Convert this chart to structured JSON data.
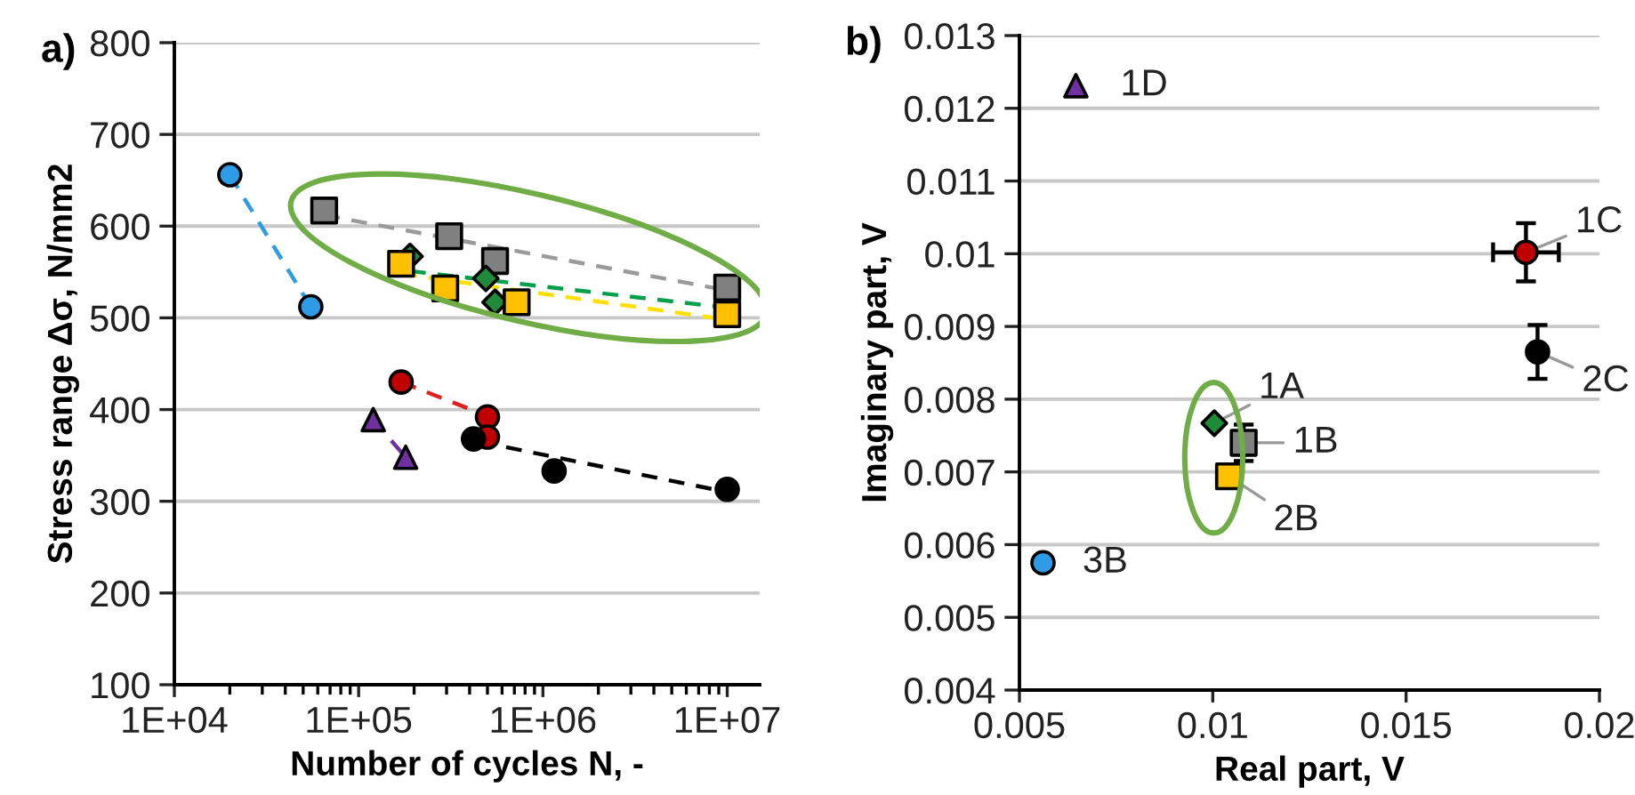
{
  "chart_data": [
    {
      "type": "scatter",
      "xlabel": "Number of cycles N, -",
      "ylabel": "Stress range Δσ, N/mm2",
      "annotations": [
        "a)"
      ],
      "log": "x",
      "grid": "y",
      "xlim": [
        10000,
        15000000
      ],
      "xticks": [
        {
          "value": 10000,
          "label": "1E+04"
        },
        {
          "value": 100000,
          "label": "1E+05"
        },
        {
          "value": 1000000,
          "label": "1E+06"
        },
        {
          "value": 10000000,
          "label": "1E+07"
        }
      ],
      "ylim": [
        100,
        800
      ],
      "yticks": [
        100,
        200,
        300,
        400,
        500,
        600,
        700,
        800
      ],
      "series": [
        {
          "type": "line",
          "color": "#2e9be6",
          "line_style": "dashed",
          "marker": "none",
          "x": [
            20000,
            55000
          ],
          "values": [
            656,
            512
          ]
        },
        {
          "type": "line",
          "color": "#9a9a9a",
          "line_style": "dashed",
          "marker": "none",
          "x": [
            65000,
            10000000
          ],
          "values": [
            612,
            530
          ]
        },
        {
          "type": "line",
          "color": "#00a04a",
          "line_style": "dashed",
          "marker": "none",
          "x": [
            190000,
            10000000
          ],
          "values": [
            551,
            511
          ]
        },
        {
          "type": "line",
          "color": "#ffe000",
          "line_style": "dashed",
          "marker": "none",
          "x": [
            170000,
            10000000
          ],
          "values": [
            548,
            498
          ]
        },
        {
          "type": "line",
          "color": "#e02020",
          "line_style": "dashed",
          "marker": "none",
          "x": [
            170000,
            530000
          ],
          "values": [
            430,
            391
          ]
        },
        {
          "type": "line",
          "color": "#7030a0",
          "line_style": "dashed",
          "marker": "none",
          "x": [
            120000,
            180000
          ],
          "values": [
            389,
            348
          ]
        },
        {
          "type": "line",
          "color": "#000000",
          "line_style": "dashed",
          "marker": "none",
          "x": [
            450000,
            10000000
          ],
          "values": [
            365,
            310
          ]
        },
        {
          "type": "scatter",
          "color": "#2e9be6",
          "marker": "circle",
          "x": [
            20000,
            55000
          ],
          "values": [
            656,
            512
          ]
        },
        {
          "type": "scatter",
          "color": "#808080",
          "marker": "square",
          "x": [
            65000,
            310000,
            550000,
            10000000
          ],
          "values": [
            617,
            589,
            562,
            533
          ]
        },
        {
          "type": "scatter",
          "color": "#1e8a3a",
          "marker": "diamond",
          "x": [
            190000,
            490000,
            550000
          ],
          "values": [
            567,
            543,
            517
          ]
        },
        {
          "type": "scatter",
          "color": "#ffc000",
          "marker": "square",
          "x": [
            170000,
            295000,
            720000,
            10000000
          ],
          "values": [
            559,
            532,
            517,
            504
          ]
        },
        {
          "type": "scatter",
          "color": "#c00000",
          "marker": "circle",
          "x": [
            170000,
            500000,
            500000
          ],
          "values": [
            430,
            392,
            370
          ]
        },
        {
          "type": "scatter",
          "color": "#7030a0",
          "marker": "triangle",
          "x": [
            120000,
            180000
          ],
          "values": [
            389,
            348
          ]
        },
        {
          "type": "scatter",
          "color": "#000000",
          "marker": "circle",
          "x": [
            420000,
            1150000,
            10000000
          ],
          "values": [
            368,
            333,
            313
          ]
        }
      ]
    },
    {
      "type": "scatter",
      "xlabel": "Real part, V",
      "ylabel": "Imaginary part, V",
      "grid": "y",
      "annotations": [
        "b)",
        {
          "text": "1D",
          "x": 0.00646,
          "y": 0.01231
        },
        {
          "text": "1C",
          "x": 0.0181,
          "y": 0.01002
        },
        {
          "text": "2C",
          "x": 0.0184,
          "y": 0.00865
        },
        {
          "text": "1A",
          "x": 0.01004,
          "y": 0.00767
        },
        {
          "text": "1B",
          "x": 0.0108,
          "y": 0.0074
        },
        {
          "text": "2B",
          "x": 0.01042,
          "y": 0.00694
        },
        {
          "text": "3B",
          "x": 0.00561,
          "y": 0.00575
        }
      ],
      "xlim": [
        0.005,
        0.02
      ],
      "xticks": [
        0.005,
        0.01,
        0.015,
        0.02
      ],
      "ylim": [
        0.004,
        0.013
      ],
      "yticks": [
        0.004,
        0.005,
        0.006,
        0.007,
        0.008,
        0.009,
        0.01,
        0.011,
        0.012,
        0.013
      ],
      "series": [
        {
          "color": "#7030a0",
          "marker": "triangle",
          "x": [
            0.00646
          ],
          "values": [
            0.01231
          ]
        },
        {
          "color": "#c00000",
          "marker": "circle",
          "x": [
            0.0181
          ],
          "values": [
            0.01002
          ],
          "errors": [
            0.0004
          ],
          "xerrors": [
            0.00085
          ]
        },
        {
          "color": "#000000",
          "marker": "circle",
          "x": [
            0.0184
          ],
          "values": [
            0.00865
          ],
          "errors": [
            0.00037
          ]
        },
        {
          "color": "#1e8a3a",
          "marker": "diamond",
          "x": [
            0.01004
          ],
          "values": [
            0.00767
          ]
        },
        {
          "color": "#808080",
          "marker": "square",
          "x": [
            0.0108
          ],
          "values": [
            0.0074
          ],
          "errors": [
            0.00025
          ]
        },
        {
          "color": "#ffc000",
          "marker": "square",
          "x": [
            0.01042
          ],
          "values": [
            0.00694
          ]
        },
        {
          "color": "#2e9be6",
          "marker": "circle",
          "x": [
            0.00561
          ],
          "values": [
            0.00575
          ]
        }
      ]
    }
  ]
}
